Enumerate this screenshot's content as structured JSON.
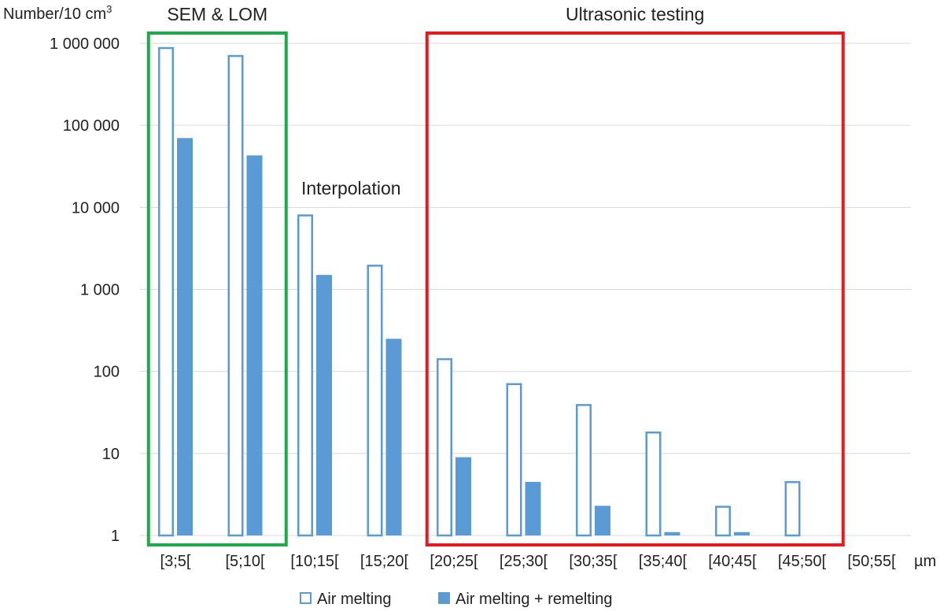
{
  "chart_data": {
    "type": "bar",
    "yscale": "log",
    "ylim": [
      1,
      1000000
    ],
    "ylabel_base": "Number/10 cm",
    "ylabel_sup": "3",
    "x_unit": "µm",
    "y_ticks": [
      {
        "value": 1,
        "label": "1"
      },
      {
        "value": 10,
        "label": "10"
      },
      {
        "value": 100,
        "label": "100"
      },
      {
        "value": 1000,
        "label": "1 000"
      },
      {
        "value": 10000,
        "label": "10 000"
      },
      {
        "value": 100000,
        "label": "100 000"
      },
      {
        "value": 1000000,
        "label": "1 000 000"
      }
    ],
    "categories": [
      "[3;5[",
      "[5;10[",
      "[10;15[",
      "[15;20[",
      "[20;25[",
      "[25;30[",
      "[30;35[",
      "[35;40[",
      "[40;45[",
      "[45;50[",
      "[50;55["
    ],
    "series": [
      {
        "name": "Air melting",
        "style": "outline",
        "color": "#5b9bd5",
        "values": [
          900000,
          720000,
          8200,
          2000,
          145,
          72,
          40,
          18.5,
          2.3,
          4.6,
          null
        ]
      },
      {
        "name": "Air melting + remelting",
        "style": "filled",
        "color": "#5b9bd5",
        "values": [
          70000,
          43000,
          1500,
          250,
          9,
          4.5,
          2.3,
          1.1,
          1.1,
          null,
          null
        ]
      }
    ],
    "annotations": [
      {
        "text": "SEM & LOM",
        "color": "#1ea94a",
        "from_category": 0,
        "to_category": 1
      },
      {
        "text": "Interpolation",
        "color": null,
        "from_category": 2,
        "to_category": 3
      },
      {
        "text": "Ultrasonic testing",
        "color": "#e8191c",
        "from_category": 4,
        "to_category": 9
      }
    ],
    "grid": true,
    "legend_position": "bottom-center"
  }
}
